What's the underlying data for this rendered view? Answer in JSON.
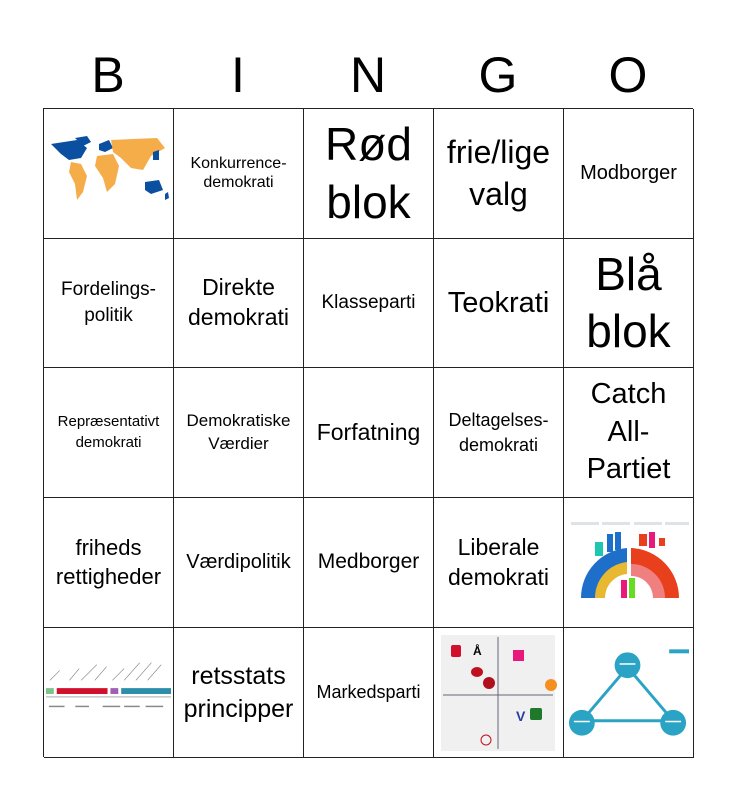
{
  "header": {
    "letters": [
      "B",
      "I",
      "N",
      "G",
      "O"
    ]
  },
  "cells": [
    {
      "type": "image",
      "icon": "world-map-image"
    },
    {
      "text": "Konkurrence-\ndemokrati"
    },
    {
      "text": "Rød\nblok"
    },
    {
      "text": "frie/lige\nvalg"
    },
    {
      "text": "Modborger"
    },
    {
      "text": "Fordelings-\npolitik"
    },
    {
      "text": "Direkte\ndemokrati"
    },
    {
      "text": "Klasseparti"
    },
    {
      "text": "Teokrati"
    },
    {
      "text": "Blå\nblok"
    },
    {
      "text": "Repræsentativt\ndemokrati"
    },
    {
      "text": "Demokratiske\nVærdier"
    },
    {
      "text": "Forfatning"
    },
    {
      "text": "Deltagelses-\ndemokrati"
    },
    {
      "text": "Catch\nAll-\nPartiet"
    },
    {
      "text": "friheds\nrettigheder"
    },
    {
      "text": "Værdipolitik"
    },
    {
      "text": "Medborger"
    },
    {
      "text": "Liberale\ndemokrati"
    },
    {
      "type": "image",
      "icon": "parliament-seats-chart-image"
    },
    {
      "type": "image",
      "icon": "political-timeline-image"
    },
    {
      "text": "retsstats\nprincipper"
    },
    {
      "text": "Markedsparti"
    },
    {
      "type": "image",
      "icon": "party-positions-quadrant-image"
    },
    {
      "type": "image",
      "icon": "power-separation-triangle-image"
    }
  ],
  "colors": {
    "map_blue": "#0a4fa0",
    "map_orange": "#f5ad4a",
    "triangle": "#2aa3c4",
    "red": "#d0102c",
    "party_blue": "#1e6fc9"
  }
}
